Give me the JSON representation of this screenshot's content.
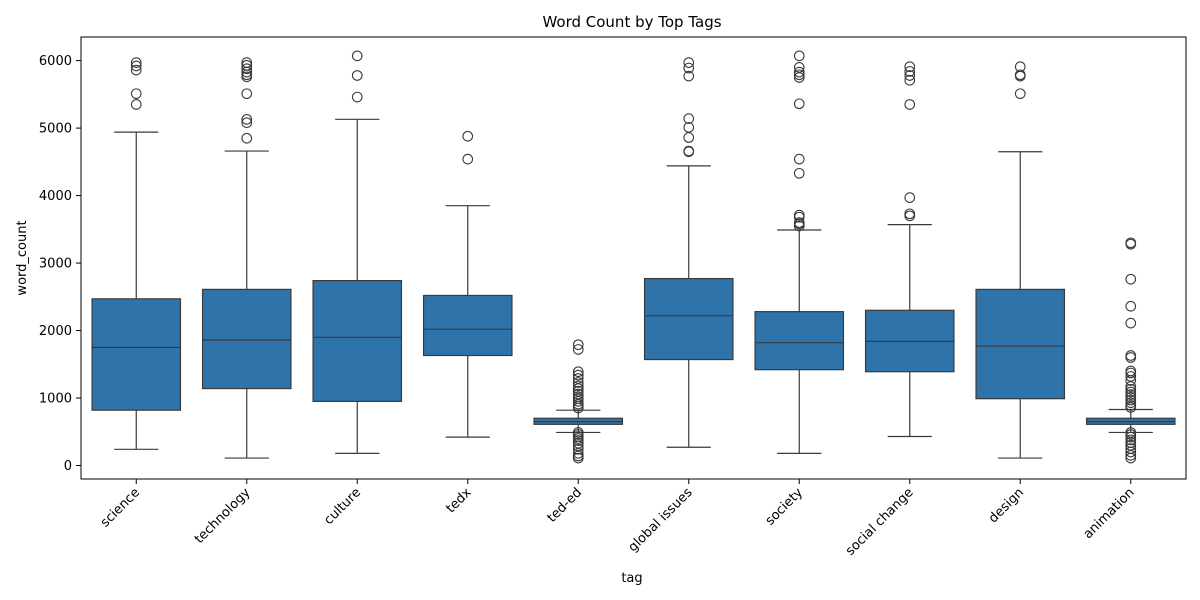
{
  "chart_data": {
    "type": "box",
    "title": "Word Count by Top Tags",
    "xlabel": "tag",
    "ylabel": "word_count",
    "ylim": [
      -200,
      6350
    ],
    "yticks": [
      0,
      1000,
      2000,
      3000,
      4000,
      5000,
      6000
    ],
    "ytick_labels": [
      "0",
      "1000",
      "2000",
      "3000",
      "4000",
      "5000",
      "6000"
    ],
    "grid": false,
    "legend": "none",
    "colors": {
      "box": "#2f73ab",
      "line": "#3a3a3a"
    },
    "categories": [
      "science",
      "technology",
      "culture",
      "tedx",
      "ted-ed",
      "global issues",
      "society",
      "social change",
      "design",
      "animation"
    ],
    "boxes": [
      {
        "whisker_low": 240,
        "q1": 820,
        "median": 1750,
        "q3": 2470,
        "whisker_high": 4940,
        "outliers": [
          5350,
          5510,
          5860,
          5920,
          5970
        ]
      },
      {
        "whisker_low": 110,
        "q1": 1140,
        "median": 1860,
        "q3": 2610,
        "whisker_high": 4660,
        "outliers": [
          4850,
          5080,
          5130,
          5510,
          5760,
          5790,
          5830,
          5880,
          5930,
          5970
        ]
      },
      {
        "whisker_low": 180,
        "q1": 950,
        "median": 1900,
        "q3": 2740,
        "whisker_high": 5130,
        "outliers": [
          5460,
          5780,
          6070
        ]
      },
      {
        "whisker_low": 420,
        "q1": 1630,
        "median": 2020,
        "q3": 2520,
        "whisker_high": 3850,
        "outliers": [
          4540,
          4880
        ]
      },
      {
        "whisker_low": 490,
        "q1": 610,
        "median": 650,
        "q3": 700,
        "whisker_high": 820,
        "outliers": [
          110,
          140,
          180,
          240,
          290,
          330,
          370,
          400,
          430,
          460,
          490,
          850,
          880,
          910,
          950,
          990,
          1020,
          1060,
          1100,
          1140,
          1180,
          1230,
          1290,
          1340,
          1390,
          1720,
          1790
        ]
      },
      {
        "whisker_low": 270,
        "q1": 1570,
        "median": 2220,
        "q3": 2770,
        "whisker_high": 4440,
        "outliers": [
          4650,
          4660,
          4860,
          5010,
          5140,
          5770,
          5890,
          5970
        ]
      },
      {
        "whisker_low": 180,
        "q1": 1420,
        "median": 1820,
        "q3": 2280,
        "whisker_high": 3490,
        "outliers": [
          3550,
          3580,
          3600,
          3680,
          3710,
          4330,
          4540,
          5360,
          5750,
          5790,
          5830,
          5900,
          6070
        ]
      },
      {
        "whisker_low": 430,
        "q1": 1390,
        "median": 1840,
        "q3": 2300,
        "whisker_high": 3570,
        "outliers": [
          3700,
          3730,
          3970,
          5350,
          5710,
          5780,
          5840,
          5910
        ]
      },
      {
        "whisker_low": 110,
        "q1": 990,
        "median": 1770,
        "q3": 2610,
        "whisker_high": 4650,
        "outliers": [
          5510,
          5770,
          5790,
          5910
        ]
      },
      {
        "whisker_low": 490,
        "q1": 610,
        "median": 650,
        "q3": 700,
        "whisker_high": 830,
        "outliers": [
          110,
          150,
          200,
          250,
          300,
          340,
          380,
          420,
          460,
          490,
          860,
          890,
          930,
          970,
          1010,
          1050,
          1090,
          1130,
          1170,
          1260,
          1320,
          1370,
          1400,
          1600,
          1630,
          2110,
          2360,
          2760,
          3280,
          3300
        ]
      }
    ]
  }
}
